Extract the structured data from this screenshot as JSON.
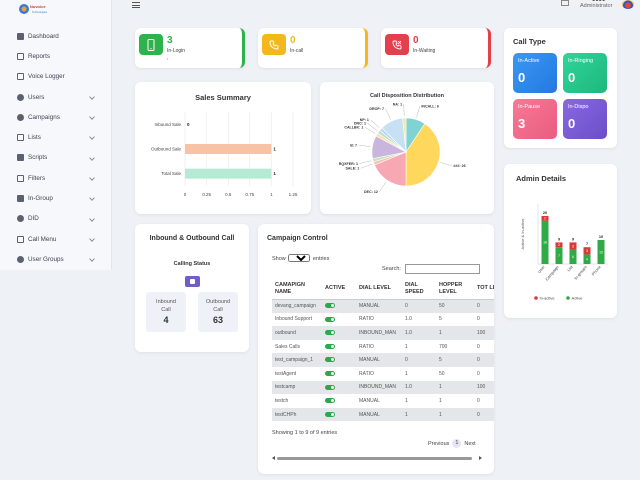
{
  "brand": {
    "logo_text": "Nuvoice Technologies"
  },
  "sidebar": {
    "items": [
      {
        "label": "Dashboard",
        "icon": "dashboard-icon",
        "has_children": false
      },
      {
        "label": "Reports",
        "icon": "reports-icon",
        "has_children": false
      },
      {
        "label": "Voice Logger",
        "icon": "voice-logger-icon",
        "has_children": false
      },
      {
        "label": "Users",
        "icon": "users-icon",
        "has_children": true
      },
      {
        "label": "Campaigns",
        "icon": "campaigns-icon",
        "has_children": true
      },
      {
        "label": "Lists",
        "icon": "lists-icon",
        "has_children": true
      },
      {
        "label": "Scripts",
        "icon": "scripts-icon",
        "has_children": true
      },
      {
        "label": "Filters",
        "icon": "filters-icon",
        "has_children": true
      },
      {
        "label": "In-Group",
        "icon": "in-group-icon",
        "has_children": true
      },
      {
        "label": "DID",
        "icon": "did-icon",
        "has_children": true
      },
      {
        "label": "Call Menu",
        "icon": "call-menu-icon",
        "has_children": true
      },
      {
        "label": "User Groups",
        "icon": "user-groups-icon",
        "has_children": true
      }
    ]
  },
  "topbar": {
    "user_name": "0000",
    "user_role": "Administrator"
  },
  "stats": [
    {
      "value": "3",
      "label": "In-Login",
      "extra": ",",
      "color": "#2fb14c"
    },
    {
      "value": "0",
      "label": "In-call",
      "extra": "",
      "color": "#f4b81d"
    },
    {
      "value": "0",
      "label": "In-Waiting",
      "extra": "",
      "color": "#e2404a"
    }
  ],
  "call_type": {
    "title": "Call Type",
    "tiles": [
      {
        "label": "In-Active",
        "value": "0",
        "color": "#2f8df0"
      },
      {
        "label": "In-Ringing",
        "value": "0",
        "color": "#25c98a"
      },
      {
        "label": "In-Pause",
        "value": "3",
        "color": "#f06b8a"
      },
      {
        "label": "In-Dispo",
        "value": "0",
        "color": "#7b5cd6"
      }
    ]
  },
  "sales_summary": {
    "chart_data": {
      "type": "bar",
      "orientation": "horizontal",
      "title": "Sales Summary",
      "categories": [
        "Inbound Sale",
        "Outbound Sale",
        "Total Sale"
      ],
      "values": [
        0,
        1,
        1
      ],
      "colors": [
        "#cccccc",
        "#f8c2a4",
        "#b6ead4"
      ],
      "xlim": [
        0,
        1.25
      ],
      "xticks": [
        "0",
        "0.25",
        "0.5",
        "0.75",
        "1",
        "1.25"
      ]
    }
  },
  "dispo": {
    "chart_data": {
      "type": "pie",
      "title": "Call Disposition Distribution",
      "slices": [
        {
          "label": "INCALL",
          "value": 6,
          "color": "#7fd3d2"
        },
        {
          "label": "###",
          "value": 26,
          "color": "#ffd75c"
        },
        {
          "label": "DEC",
          "value": 12,
          "color": "#f7a8b3"
        },
        {
          "label": "SALE",
          "value": 1,
          "color": "#f4c2b4"
        },
        {
          "label": "RQXFER",
          "value": 1,
          "color": "#c3e5b5"
        },
        {
          "label": "B",
          "value": 7,
          "color": "#c9b5de"
        },
        {
          "label": "CALLBK",
          "value": 1,
          "color": "#ffe0a8"
        },
        {
          "label": "DNC",
          "value": 1,
          "color": "#b7e2c8"
        },
        {
          "label": "NP",
          "value": 1,
          "color": "#bcd4f0"
        },
        {
          "label": "DROP",
          "value": 7,
          "color": "#c8e0f4"
        },
        {
          "label": "NA",
          "value": 1,
          "color": "#f3e99c"
        }
      ]
    }
  },
  "admin_details": {
    "title": "Admin Details",
    "chart_data": {
      "type": "bar",
      "stacked": true,
      "categories": [
        "User",
        "Campaign",
        "List",
        "In-groups",
        "Phone"
      ],
      "ylabel": "Active & In-active",
      "series": [
        {
          "name": "Active",
          "values": [
            18,
            7,
            6,
            4,
            10
          ],
          "color": "#2faa46"
        },
        {
          "name": "In-active",
          "values": [
            2,
            2,
            3,
            3,
            0
          ],
          "color": "#d63a3a"
        }
      ],
      "totals": [
        "20",
        "9",
        "9",
        "7",
        "10"
      ],
      "segment_labels_active": [
        "18",
        "7",
        "6",
        "4",
        "10"
      ],
      "segment_labels_inactive": [
        "2",
        "2",
        "3",
        "3",
        ""
      ],
      "ylim": [
        0,
        25
      ],
      "legend": [
        "In-active",
        "Active"
      ],
      "legend_position": "bottom"
    }
  },
  "inout": {
    "title": "Inbound & Outbound Call",
    "status": "Calling Status",
    "inbound": {
      "l1": "Inbound",
      "l2": "Call",
      "value": "4"
    },
    "outbound": {
      "l1": "Outbound",
      "l2": "Call",
      "value": "63"
    }
  },
  "campaign": {
    "title": "Campaign Control",
    "show_prefix": "Show",
    "show_value": "10",
    "show_suffix": "entries",
    "search_label": "Search:",
    "columns": [
      "CAMAPIGN NAME",
      "ACTIVE",
      "DIAL LEVEL",
      "DIAL SPEED",
      "HOPPER LEVEL",
      "TOT LEA"
    ],
    "rows": [
      [
        "devang_campaign",
        "",
        "MANUAL",
        "0",
        "50",
        "0"
      ],
      [
        "Inbound Support",
        "",
        "RATIO",
        "1.0",
        "5",
        "0"
      ],
      [
        "outbound",
        "",
        "INBOUND_MAN",
        "1.0",
        "1",
        "100"
      ],
      [
        "Sales Calls",
        "",
        "RATIO",
        "1",
        "700",
        "0"
      ],
      [
        "test_campaign_1",
        "",
        "MANUAL",
        "0",
        "5",
        "0"
      ],
      [
        "testAgent",
        "",
        "RATIO",
        "1",
        "50",
        "0"
      ],
      [
        "testcamp",
        "",
        "INBOUND_MAN",
        "1.0",
        "1",
        "100"
      ],
      [
        "testch",
        "",
        "MANUAL",
        "1",
        "1",
        "0"
      ],
      [
        "testCHPh",
        "",
        "MANUAL",
        "1",
        "1",
        "0"
      ]
    ],
    "info": "Showing 1 to 9 of 9 entries",
    "prev": "Previous",
    "page": "1",
    "next": "Next"
  }
}
